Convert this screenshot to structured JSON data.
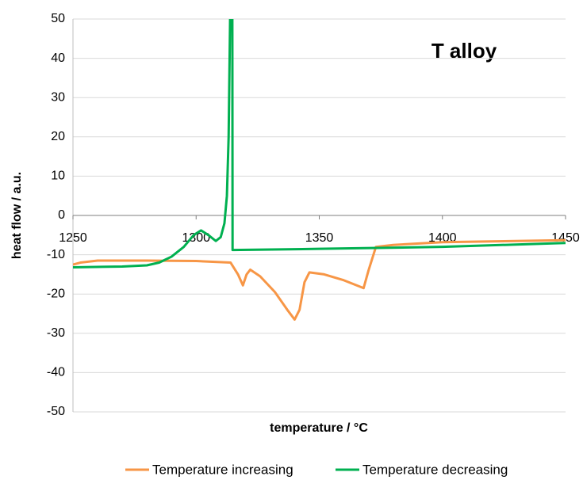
{
  "chart_data": {
    "type": "line",
    "title": "T alloy",
    "x_label": "temperature / °C",
    "y_label": "heat flow / a.u.",
    "xlim": [
      1250,
      1450
    ],
    "xticks": [
      1250,
      1300,
      1350,
      1400,
      1450
    ],
    "ylim": [
      -50,
      50
    ],
    "yticks": [
      -50,
      -40,
      -30,
      -20,
      -10,
      0,
      10,
      20,
      30,
      40,
      50
    ],
    "grid": true,
    "legend": "bottom",
    "series": [
      {
        "name": "Temperature increasing",
        "color": "#f79646",
        "x": [
          1250,
          1253,
          1260,
          1280,
          1300,
          1314,
          1317,
          1319,
          1320.5,
          1322,
          1326,
          1332,
          1337,
          1340,
          1342,
          1344,
          1346,
          1352,
          1360,
          1366,
          1368,
          1370,
          1373,
          1380,
          1400,
          1420,
          1450
        ],
        "values": [
          -12.5,
          -12,
          -11.5,
          -11.5,
          -11.6,
          -12,
          -15,
          -17.8,
          -15,
          -13.8,
          -15.5,
          -19.5,
          -24,
          -26.5,
          -24,
          -17,
          -14.5,
          -15,
          -16.5,
          -18,
          -18.5,
          -14,
          -8,
          -7.5,
          -6.8,
          -6.6,
          -6.3
        ]
      },
      {
        "name": "Temperature decreasing",
        "color": "#00b050",
        "x": [
          1250,
          1270,
          1280,
          1285,
          1290,
          1295,
          1299,
          1302,
          1305,
          1308,
          1310,
          1311.5,
          1312.5,
          1313.2,
          1313.9,
          1314.7,
          1314.8,
          1350,
          1400,
          1450
        ],
        "values": [
          -13.2,
          -13,
          -12.7,
          -12,
          -10.5,
          -8,
          -5,
          -3.8,
          -5,
          -6.5,
          -5.5,
          -2,
          5,
          20,
          55,
          55,
          -8.8,
          -8.5,
          -8,
          -7
        ]
      }
    ]
  }
}
